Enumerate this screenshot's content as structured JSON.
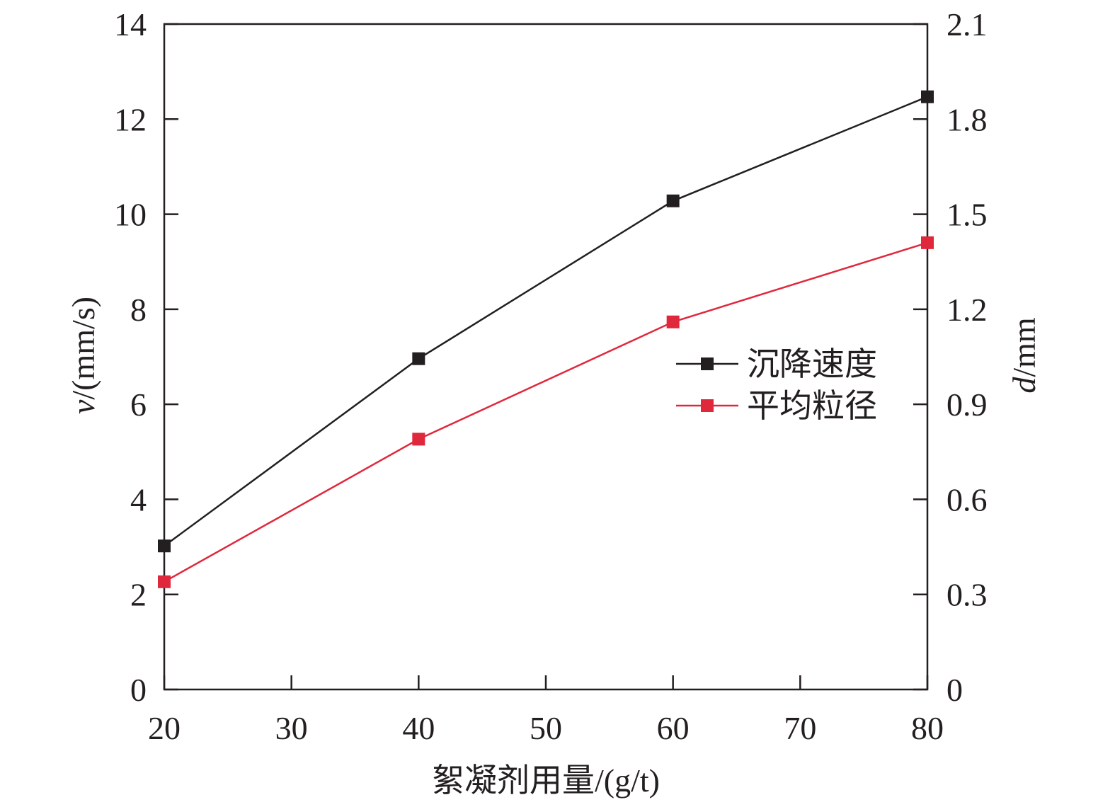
{
  "chart_data": {
    "type": "line",
    "title": "",
    "xlabel": "絮凝剂用量/(g/t)",
    "ylabel": {
      "italic": "v",
      "rest": "/(mm/s)"
    },
    "y2label": {
      "italic": "d",
      "rest": "/mm"
    },
    "x": [
      20,
      40,
      60,
      80
    ],
    "xlim": [
      20,
      80
    ],
    "xticks": [
      "20",
      "30",
      "40",
      "50",
      "60",
      "70",
      "80"
    ],
    "ylim": [
      0,
      14
    ],
    "yticks": [
      "0",
      "2",
      "4",
      "6",
      "8",
      "10",
      "12",
      "14"
    ],
    "y2lim": [
      0,
      2.1
    ],
    "y2ticks": [
      "0",
      "0.3",
      "0.6",
      "0.9",
      "1.2",
      "1.5",
      "1.8",
      "2.1"
    ],
    "grid": false,
    "legend_position": "right-center",
    "series": [
      {
        "name": "沉降速度",
        "axis": "left",
        "values": [
          3.02,
          6.96,
          10.28,
          12.47
        ],
        "color": "#231f20",
        "marker": "square"
      },
      {
        "name": "平均粒径",
        "axis": "right",
        "values": [
          0.34,
          0.79,
          1.16,
          1.41
        ],
        "color": "#e0283c",
        "marker": "square"
      }
    ]
  }
}
